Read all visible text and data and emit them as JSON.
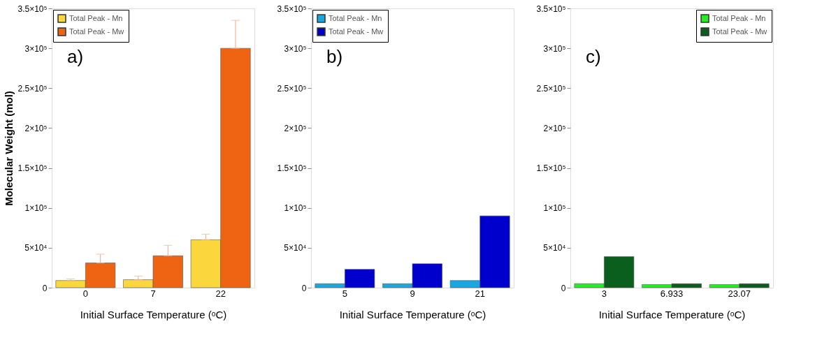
{
  "chart_data": [
    {
      "type": "bar",
      "ylabel": "Molecular Weight (mol)",
      "xlabel": "Initial Surface Temperature (ᵒC)",
      "annotations": [
        "a)"
      ],
      "categories": [
        "0",
        "7",
        "22"
      ],
      "legend": "top left",
      "grid": false,
      "ylim": [
        0,
        350000
      ],
      "yticks": [
        0,
        {
          "value": 50000,
          "label": "5×10⁴"
        },
        {
          "value": 100000,
          "label": "1×10⁵"
        },
        {
          "value": 150000,
          "label": "1.5×10⁵"
        },
        {
          "value": 200000,
          "label": "2×10⁵"
        },
        {
          "value": 250000,
          "label": "2.5×10⁵"
        },
        {
          "value": 300000,
          "label": "3×10⁵"
        },
        {
          "value": 350000,
          "label": "3.5×10⁵"
        }
      ],
      "series": [
        {
          "name": "Total Peak - Mn",
          "color": "#fbd63c",
          "values": [
            9000,
            10000,
            60000
          ],
          "errors": [
            [
              9000,
              11000
            ],
            [
              10000,
              14500
            ],
            [
              60000,
              67000
            ]
          ]
        },
        {
          "name": "Total Peak - Mw",
          "color": "#ef6412",
          "values": [
            31000,
            40000,
            300000
          ],
          "errors": [
            [
              31000,
              42000
            ],
            [
              40000,
              53000
            ],
            [
              300000,
              335000
            ]
          ]
        }
      ]
    },
    {
      "type": "bar",
      "xlabel": "Initial Surface Temperature (ᵒC)",
      "annotations": [
        "b)"
      ],
      "categories": [
        "5",
        "9",
        "21"
      ],
      "legend": "top left",
      "grid": false,
      "ylim": [
        0,
        350000
      ],
      "yticks": [
        0,
        {
          "value": 50000,
          "label": "5×10⁴"
        },
        {
          "value": 100000,
          "label": "1×10⁵"
        },
        {
          "value": 150000,
          "label": "1.5×10⁵"
        },
        {
          "value": 200000,
          "label": "2×10⁵"
        },
        {
          "value": 250000,
          "label": "2.5×10⁵"
        },
        {
          "value": 300000,
          "label": "3×10⁵"
        },
        {
          "value": 350000,
          "label": "3.5×10⁵"
        }
      ],
      "series": [
        {
          "name": "Total Peak - Mn",
          "color": "#1aa7e0",
          "values": [
            5000,
            5000,
            9000
          ]
        },
        {
          "name": "Total Peak - Mw",
          "color": "#0000cc",
          "values": [
            23000,
            30000,
            90000
          ]
        }
      ]
    },
    {
      "type": "bar",
      "xlabel": "Initial Surface Temperature (ᵒC)",
      "annotations": [
        "c)"
      ],
      "categories": [
        "3",
        "6.933",
        "23.07"
      ],
      "legend": "top right",
      "grid": false,
      "ylim": [
        0,
        350000
      ],
      "yticks": [
        0,
        {
          "value": 50000,
          "label": "5×10⁴"
        },
        {
          "value": 100000,
          "label": "1×10⁵"
        },
        {
          "value": 150000,
          "label": "1.5×10⁵"
        },
        {
          "value": 200000,
          "label": "2×10⁵"
        },
        {
          "value": 250000,
          "label": "2.5×10⁵"
        },
        {
          "value": 300000,
          "label": "3×10⁵"
        },
        {
          "value": 350000,
          "label": "3.5×10⁵"
        }
      ],
      "series": [
        {
          "name": "Total Peak - Mn",
          "color": "#22ee22",
          "values": [
            5000,
            4000,
            4000
          ]
        },
        {
          "name": "Total Peak - Mw",
          "color": "#0a5e1e",
          "values": [
            39000,
            5000,
            5000
          ]
        }
      ]
    }
  ]
}
